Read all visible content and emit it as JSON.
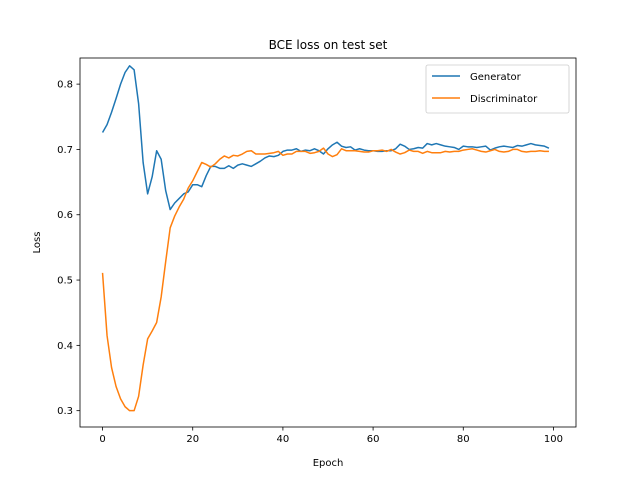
{
  "chart_data": {
    "type": "line",
    "title": "BCE loss on test set",
    "xlabel": "Epoch",
    "ylabel": "Loss",
    "xlim": [
      -5,
      105
    ],
    "ylim": [
      0.275,
      0.84
    ],
    "xticks": [
      0,
      20,
      40,
      60,
      80,
      100
    ],
    "yticks": [
      0.3,
      0.4,
      0.5,
      0.6,
      0.7,
      0.8
    ],
    "legend_position": "upper right",
    "grid": false,
    "series": [
      {
        "name": "Generator",
        "color": "#1f77b4",
        "x": [
          0,
          1,
          2,
          3,
          4,
          5,
          6,
          7,
          8,
          9,
          10,
          11,
          12,
          13,
          14,
          15,
          16,
          17,
          18,
          19,
          20,
          21,
          22,
          23,
          24,
          25,
          26,
          27,
          28,
          29,
          30,
          31,
          32,
          33,
          34,
          35,
          36,
          37,
          38,
          39,
          40,
          41,
          42,
          43,
          44,
          45,
          46,
          47,
          48,
          49,
          50,
          51,
          52,
          53,
          54,
          55,
          56,
          57,
          58,
          59,
          60,
          61,
          62,
          63,
          64,
          65,
          66,
          67,
          68,
          69,
          70,
          71,
          72,
          73,
          74,
          75,
          76,
          77,
          78,
          79,
          80,
          81,
          82,
          83,
          84,
          85,
          86,
          87,
          88,
          89,
          90,
          91,
          92,
          93,
          94,
          95,
          96,
          97,
          98,
          99
        ],
        "y": [
          0.726,
          0.738,
          0.757,
          0.778,
          0.8,
          0.818,
          0.828,
          0.822,
          0.77,
          0.68,
          0.632,
          0.658,
          0.698,
          0.685,
          0.637,
          0.608,
          0.618,
          0.625,
          0.632,
          0.635,
          0.646,
          0.646,
          0.643,
          0.66,
          0.674,
          0.674,
          0.671,
          0.671,
          0.675,
          0.671,
          0.676,
          0.678,
          0.676,
          0.674,
          0.678,
          0.682,
          0.687,
          0.69,
          0.689,
          0.691,
          0.697,
          0.699,
          0.699,
          0.701,
          0.697,
          0.699,
          0.698,
          0.701,
          0.698,
          0.693,
          0.701,
          0.707,
          0.711,
          0.705,
          0.703,
          0.704,
          0.699,
          0.701,
          0.699,
          0.698,
          0.698,
          0.697,
          0.697,
          0.698,
          0.698,
          0.701,
          0.708,
          0.705,
          0.7,
          0.701,
          0.703,
          0.702,
          0.709,
          0.707,
          0.709,
          0.707,
          0.705,
          0.704,
          0.703,
          0.7,
          0.705,
          0.704,
          0.704,
          0.703,
          0.704,
          0.705,
          0.699,
          0.702,
          0.704,
          0.705,
          0.704,
          0.703,
          0.706,
          0.705,
          0.707,
          0.709,
          0.707,
          0.706,
          0.705,
          0.702
        ]
      },
      {
        "name": "Discriminator",
        "color": "#ff7f0e",
        "x": [
          0,
          1,
          2,
          3,
          4,
          5,
          6,
          7,
          8,
          9,
          10,
          11,
          12,
          13,
          14,
          15,
          16,
          17,
          18,
          19,
          20,
          21,
          22,
          23,
          24,
          25,
          26,
          27,
          28,
          29,
          30,
          31,
          32,
          33,
          34,
          35,
          36,
          37,
          38,
          39,
          40,
          41,
          42,
          43,
          44,
          45,
          46,
          47,
          48,
          49,
          50,
          51,
          52,
          53,
          54,
          55,
          56,
          57,
          58,
          59,
          60,
          61,
          62,
          63,
          64,
          65,
          66,
          67,
          68,
          69,
          70,
          71,
          72,
          73,
          74,
          75,
          76,
          77,
          78,
          79,
          80,
          81,
          82,
          83,
          84,
          85,
          86,
          87,
          88,
          89,
          90,
          91,
          92,
          93,
          94,
          95,
          96,
          97,
          98,
          99
        ],
        "y": [
          0.511,
          0.415,
          0.366,
          0.337,
          0.318,
          0.306,
          0.3,
          0.3,
          0.322,
          0.37,
          0.41,
          0.422,
          0.435,
          0.474,
          0.528,
          0.58,
          0.598,
          0.612,
          0.624,
          0.641,
          0.652,
          0.666,
          0.68,
          0.677,
          0.673,
          0.678,
          0.685,
          0.69,
          0.687,
          0.691,
          0.69,
          0.693,
          0.697,
          0.698,
          0.693,
          0.693,
          0.693,
          0.694,
          0.695,
          0.697,
          0.691,
          0.693,
          0.693,
          0.697,
          0.697,
          0.697,
          0.694,
          0.695,
          0.697,
          0.702,
          0.693,
          0.689,
          0.692,
          0.701,
          0.698,
          0.698,
          0.698,
          0.697,
          0.696,
          0.696,
          0.698,
          0.698,
          0.699,
          0.697,
          0.7,
          0.696,
          0.693,
          0.695,
          0.699,
          0.697,
          0.697,
          0.694,
          0.697,
          0.695,
          0.695,
          0.695,
          0.697,
          0.696,
          0.697,
          0.697,
          0.699,
          0.7,
          0.701,
          0.699,
          0.697,
          0.696,
          0.698,
          0.7,
          0.697,
          0.696,
          0.697,
          0.7,
          0.7,
          0.697,
          0.696,
          0.697,
          0.697,
          0.698,
          0.697,
          0.697
        ]
      }
    ]
  }
}
